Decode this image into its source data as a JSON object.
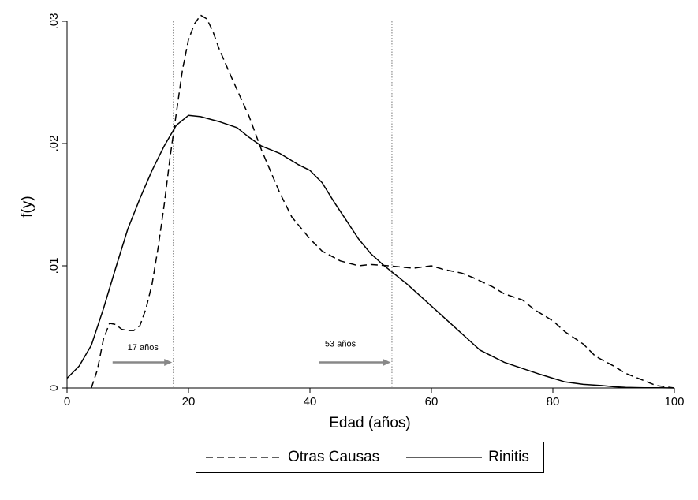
{
  "chart_data": {
    "type": "line",
    "title": "",
    "xlabel": "Edad (años)",
    "ylabel": "f(y)",
    "xlim": [
      0,
      100
    ],
    "ylim": [
      0,
      0.03
    ],
    "xticks": [
      0,
      20,
      40,
      60,
      80,
      100
    ],
    "xtick_labels": [
      "0",
      "20",
      "40",
      "60",
      "80",
      "100"
    ],
    "yticks": [
      0,
      0.01,
      0.02,
      0.03
    ],
    "ytick_labels": [
      "0",
      ".01",
      ".02",
      ".03"
    ],
    "grid": false,
    "legend_position": "bottom",
    "series": [
      {
        "name": "Otras Causas",
        "style": "dashed",
        "color": "#000000",
        "x": [
          4,
          5,
          6,
          7,
          8,
          9,
          10,
          11,
          12,
          13,
          14,
          15,
          16,
          17,
          18,
          19,
          20,
          21,
          22,
          23,
          24,
          25,
          27,
          30,
          32,
          35,
          37,
          40,
          42,
          45,
          48,
          50,
          53,
          55,
          57,
          60,
          62,
          65,
          67,
          70,
          72,
          75,
          77,
          80,
          82,
          85,
          87,
          90,
          92,
          95,
          97,
          100
        ],
        "y": [
          0,
          0.0015,
          0.004,
          0.0053,
          0.0052,
          0.0048,
          0.0047,
          0.0047,
          0.0051,
          0.0065,
          0.0085,
          0.0115,
          0.015,
          0.019,
          0.0225,
          0.026,
          0.0285,
          0.0298,
          0.0305,
          0.0302,
          0.0292,
          0.0278,
          0.0255,
          0.0222,
          0.0195,
          0.016,
          0.014,
          0.0122,
          0.0112,
          0.0104,
          0.01,
          0.0101,
          0.01,
          0.0099,
          0.0098,
          0.01,
          0.0097,
          0.0094,
          0.009,
          0.0083,
          0.0077,
          0.0072,
          0.0064,
          0.0055,
          0.0046,
          0.0036,
          0.0026,
          0.0018,
          0.0012,
          0.0006,
          0.0002,
          0
        ]
      },
      {
        "name": "Rinitis",
        "style": "solid",
        "color": "#000000",
        "x": [
          0,
          2,
          4,
          6,
          8,
          10,
          12,
          14,
          16,
          18,
          20,
          22,
          25,
          28,
          30,
          32,
          35,
          38,
          40,
          42,
          44,
          46,
          48,
          50,
          52,
          54,
          56,
          58,
          60,
          62,
          64,
          66,
          68,
          70,
          72,
          75,
          78,
          80,
          82,
          85,
          88,
          90,
          92,
          95,
          98,
          100
        ],
        "y": [
          0.0008,
          0.0018,
          0.0035,
          0.0065,
          0.0098,
          0.013,
          0.0155,
          0.0178,
          0.0198,
          0.0215,
          0.0223,
          0.0222,
          0.0218,
          0.0213,
          0.0205,
          0.0198,
          0.0192,
          0.0183,
          0.0178,
          0.0168,
          0.0152,
          0.0137,
          0.0122,
          0.011,
          0.0101,
          0.0093,
          0.0085,
          0.0076,
          0.0067,
          0.0058,
          0.0049,
          0.004,
          0.0031,
          0.0026,
          0.0021,
          0.0016,
          0.0011,
          0.0008,
          0.0005,
          0.0003,
          0.0002,
          0.0001,
          5e-05,
          2e-05,
          1e-05,
          0
        ]
      }
    ],
    "reference_lines": [
      {
        "x": 17.5,
        "style": "dotted"
      },
      {
        "x": 53.5,
        "style": "dotted"
      }
    ],
    "annotations": [
      {
        "text": "17 años",
        "x": 12.5,
        "y": 0.0031
      },
      {
        "text": "53 años",
        "x": 45,
        "y": 0.0034
      }
    ],
    "arrows": [
      {
        "x_from": 7.5,
        "x_to": 17.3,
        "y": 0.0021
      },
      {
        "x_from": 41.5,
        "x_to": 53.3,
        "y": 0.0021
      }
    ]
  },
  "legend": {
    "items": [
      {
        "label": "Otras Causas",
        "style": "dashed"
      },
      {
        "label": "Rinitis",
        "style": "solid"
      }
    ]
  }
}
